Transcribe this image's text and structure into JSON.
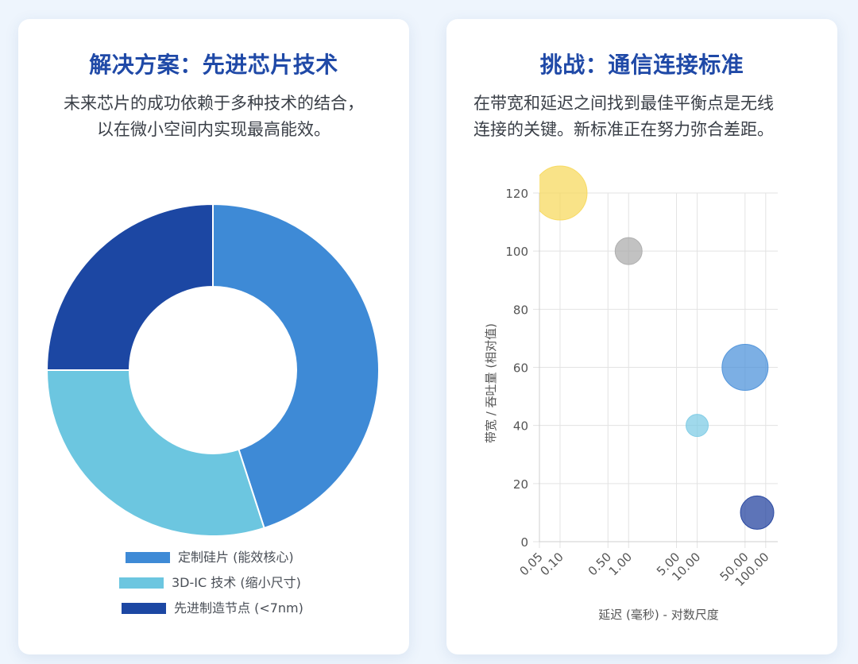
{
  "left_card": {
    "title": "解决方案：先进芯片技术",
    "desc_line1": "未来芯片的成功依赖于多种技术的结合，",
    "desc_line2": "以在微小空间内实现最高能效。"
  },
  "right_card": {
    "title": "挑战：通信连接标准",
    "desc_line1": "在带宽和延迟之间找到最佳平衡点是无线",
    "desc_line2": "连接的关键。新标准正在努力弥合差距。"
  },
  "chart_data": [
    {
      "type": "pie",
      "variant": "doughnut",
      "labels": [
        "定制硅片 (能效核心)",
        "3D-IC 技术 (缩小尺寸)",
        "先进制造节点 (<7nm)"
      ],
      "values": [
        45,
        30,
        25
      ],
      "colors": [
        "#3e8ad6",
        "#6cc6e0",
        "#1c47a3"
      ],
      "legend_position": "bottom"
    },
    {
      "type": "scatter",
      "variant": "bubble",
      "xlabel": "延迟 (毫秒) - 对数尺度",
      "ylabel": "带宽 / 吞吐量 (相对值)",
      "x_scale": "log",
      "xlim": [
        0.05,
        150
      ],
      "x_ticks": [
        "0.05",
        "0.10",
        "0.50",
        "1.00",
        "5.00",
        "10.00",
        "50.00",
        "100.00"
      ],
      "ylim": [
        0,
        120
      ],
      "y_ticks": [
        0,
        20,
        40,
        60,
        80,
        100,
        120
      ],
      "grid": true,
      "points": [
        {
          "x": 0.1,
          "y": 120,
          "r": 34,
          "color": "#f7d85a"
        },
        {
          "x": 1,
          "y": 100,
          "r": 17,
          "color": "#aaaaaa"
        },
        {
          "x": 50,
          "y": 60,
          "r": 29,
          "color": "#4a90d9"
        },
        {
          "x": 10,
          "y": 40,
          "r": 14,
          "color": "#7ccbe4"
        },
        {
          "x": 75,
          "y": 10,
          "r": 21,
          "color": "#1f3f9c"
        }
      ]
    }
  ]
}
